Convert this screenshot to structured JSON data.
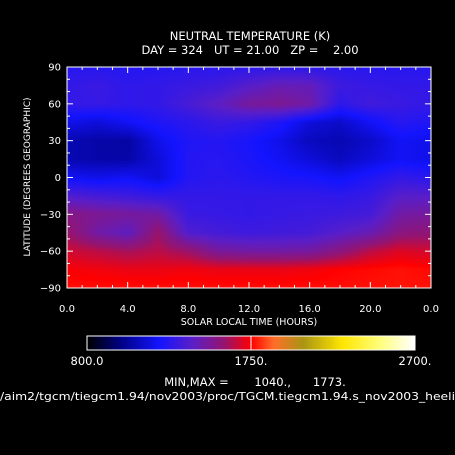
{
  "chart_data": {
    "type": "heatmap",
    "title": "NEUTRAL TEMPERATURE (K)",
    "subtitle": "DAY = 324   UT = 21.00   ZP =    2.00",
    "xlabel": "SOLAR LOCAL TIME (HOURS)",
    "ylabel": "LATITUDE (DEGREES GEOGRAPHIC)",
    "x_ticks": [
      "0.0",
      "4.0",
      "8.0",
      "12.0",
      "16.0",
      "20.0",
      "0.0"
    ],
    "y_ticks": [
      "90",
      "60",
      "30",
      "0",
      "−30",
      "−60",
      "−90"
    ],
    "xlim": [
      0,
      24
    ],
    "ylim": [
      -90,
      90
    ],
    "colorbar": {
      "min_label": "800.0",
      "mid_label": "1750.",
      "max_label": "2700.",
      "range": [
        800,
        2700
      ]
    },
    "minmax_text": "MIN,MAX =       1040.,      1773.",
    "path_text": "/aim2/tgcm/tiegcm1.94/nov2003/proc/TGCM.tiegcm1.94.s_nov2003_heeli",
    "grid": {
      "lt": [
        0,
        2,
        4,
        6,
        8,
        10,
        12,
        14,
        16,
        18,
        20,
        22,
        24
      ],
      "lat": [
        90,
        75,
        60,
        45,
        30,
        15,
        0,
        -15,
        -30,
        -45,
        -60,
        -75,
        -90
      ],
      "values": [
        [
          1270,
          1270,
          1260,
          1265,
          1275,
          1280,
          1285,
          1290,
          1285,
          1275,
          1270,
          1270,
          1270
        ],
        [
          1300,
          1320,
          1290,
          1300,
          1320,
          1340,
          1400,
          1450,
          1440,
          1330,
          1310,
          1300,
          1300
        ],
        [
          1300,
          1310,
          1290,
          1300,
          1360,
          1420,
          1500,
          1520,
          1480,
          1290,
          1340,
          1320,
          1300
        ],
        [
          1180,
          1150,
          1200,
          1250,
          1280,
          1320,
          1300,
          1250,
          1150,
          1120,
          1200,
          1270,
          1250
        ],
        [
          1080,
          1060,
          1050,
          1180,
          1250,
          1260,
          1230,
          1180,
          1100,
          1080,
          1120,
          1200,
          1180
        ],
        [
          1080,
          1060,
          1060,
          1150,
          1260,
          1270,
          1240,
          1200,
          1150,
          1100,
          1150,
          1200,
          1180
        ],
        [
          1200,
          1180,
          1200,
          1150,
          1260,
          1280,
          1260,
          1240,
          1230,
          1200,
          1250,
          1300,
          1280
        ],
        [
          1380,
          1350,
          1330,
          1300,
          1300,
          1300,
          1300,
          1300,
          1300,
          1290,
          1310,
          1400,
          1400
        ],
        [
          1550,
          1520,
          1500,
          1480,
          1320,
          1310,
          1300,
          1310,
          1320,
          1330,
          1350,
          1480,
          1500
        ],
        [
          1600,
          1480,
          1420,
          1600,
          1380,
          1350,
          1330,
          1340,
          1350,
          1400,
          1450,
          1560,
          1580
        ],
        [
          1680,
          1650,
          1620,
          1650,
          1600,
          1500,
          1480,
          1480,
          1490,
          1560,
          1650,
          1700,
          1680
        ],
        [
          1740,
          1730,
          1720,
          1720,
          1730,
          1720,
          1720,
          1720,
          1730,
          1750,
          1760,
          1770,
          1760
        ],
        [
          1765,
          1765,
          1765,
          1765,
          1765,
          1765,
          1765,
          1765,
          1765,
          1765,
          1770,
          1773,
          1770
        ]
      ]
    }
  }
}
